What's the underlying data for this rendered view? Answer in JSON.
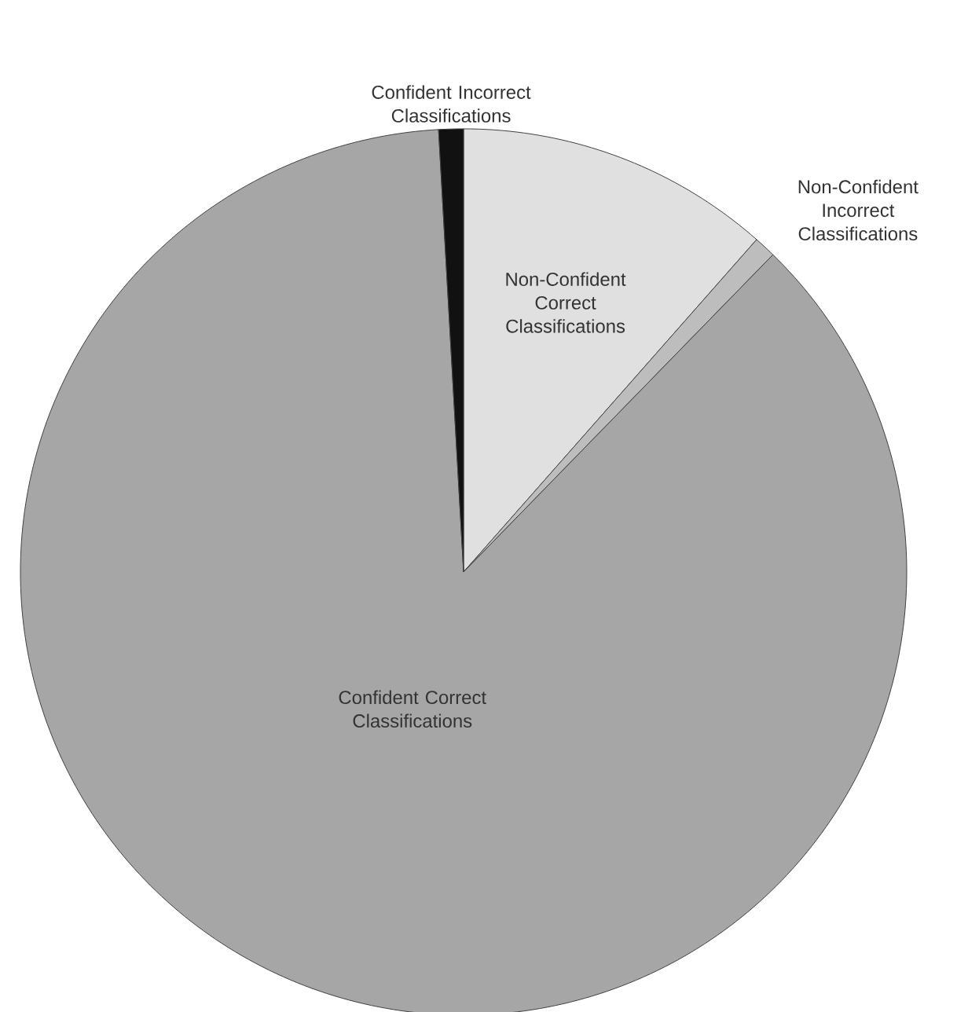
{
  "chart_data": {
    "type": "pie",
    "categories": [
      "Non-Confident Correct Classifications",
      "Non-Confident Incorrect Classifications",
      "Confident Correct Classifications",
      "Confident Incorrect Classifications"
    ],
    "values": [
      11.5,
      0.8,
      86.8,
      0.9
    ],
    "colors": [
      "#e0e0e0",
      "#bdbdbd",
      "#a6a6a6",
      "#111111"
    ]
  }
}
